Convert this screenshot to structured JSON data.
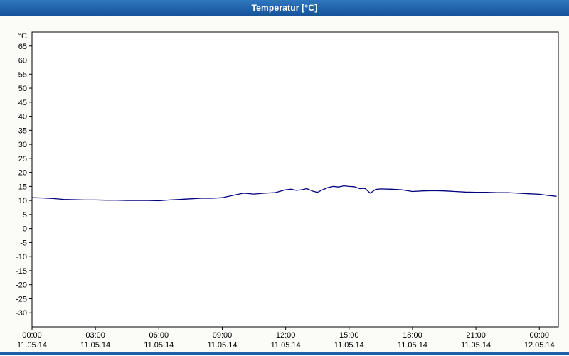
{
  "window": {
    "title": "Temperatur [°C]"
  },
  "chart_data": {
    "type": "line",
    "title": "Temperatur [°C]",
    "unit_label": "°C",
    "ylim": [
      -35,
      70
    ],
    "yticks": [
      65,
      60,
      55,
      50,
      45,
      40,
      35,
      30,
      25,
      20,
      15,
      10,
      5,
      0,
      -5,
      -10,
      -15,
      -20,
      -25,
      -30
    ],
    "xlim_hours": [
      0,
      24.9
    ],
    "xticks": [
      {
        "hour": 0,
        "time": "00:00",
        "date": "11.05.14"
      },
      {
        "hour": 3,
        "time": "03:00",
        "date": "11.05.14"
      },
      {
        "hour": 6,
        "time": "06:00",
        "date": "11.05.14"
      },
      {
        "hour": 9,
        "time": "09:00",
        "date": "11.05.14"
      },
      {
        "hour": 12,
        "time": "12:00",
        "date": "11.05.14"
      },
      {
        "hour": 15,
        "time": "15:00",
        "date": "11.05.14"
      },
      {
        "hour": 18,
        "time": "18:00",
        "date": "11.05.14"
      },
      {
        "hour": 21,
        "time": "21:00",
        "date": "11.05.14"
      },
      {
        "hour": 24,
        "time": "00:00",
        "date": "12.05.14"
      }
    ],
    "line_color": "#00007f",
    "grid": true,
    "series": [
      {
        "name": "Temperatur",
        "x_hours": [
          0,
          0.5,
          1,
          1.5,
          2,
          2.5,
          3,
          3.5,
          4,
          4.5,
          5,
          5.5,
          6,
          6.5,
          7,
          7.5,
          8,
          8.5,
          9,
          9.5,
          10,
          10.5,
          11,
          11.5,
          12,
          12.25,
          12.5,
          12.75,
          13,
          13.25,
          13.5,
          13.75,
          14,
          14.25,
          14.5,
          14.75,
          15,
          15.25,
          15.5,
          15.75,
          16,
          16.25,
          16.5,
          17,
          17.5,
          18,
          18.5,
          19,
          19.5,
          20,
          20.5,
          21,
          21.5,
          22,
          22.5,
          23,
          23.5,
          24,
          24.4,
          24.8
        ],
        "values": [
          11,
          10.9,
          10.7,
          10.4,
          10.3,
          10.2,
          10.2,
          10.1,
          10.1,
          10.0,
          10.0,
          10.0,
          9.9,
          10.2,
          10.4,
          10.6,
          10.8,
          10.8,
          11.0,
          11.8,
          12.6,
          12.3,
          12.6,
          12.8,
          13.8,
          14.0,
          13.6,
          13.8,
          14.2,
          13.4,
          12.9,
          13.8,
          14.6,
          15.0,
          14.8,
          15.2,
          15.0,
          14.9,
          14.2,
          14.3,
          12.6,
          13.9,
          14.1,
          14.0,
          13.8,
          13.2,
          13.4,
          13.5,
          13.4,
          13.2,
          13.0,
          12.9,
          12.9,
          12.8,
          12.8,
          12.6,
          12.4,
          12.2,
          11.8,
          11.5
        ]
      }
    ]
  }
}
